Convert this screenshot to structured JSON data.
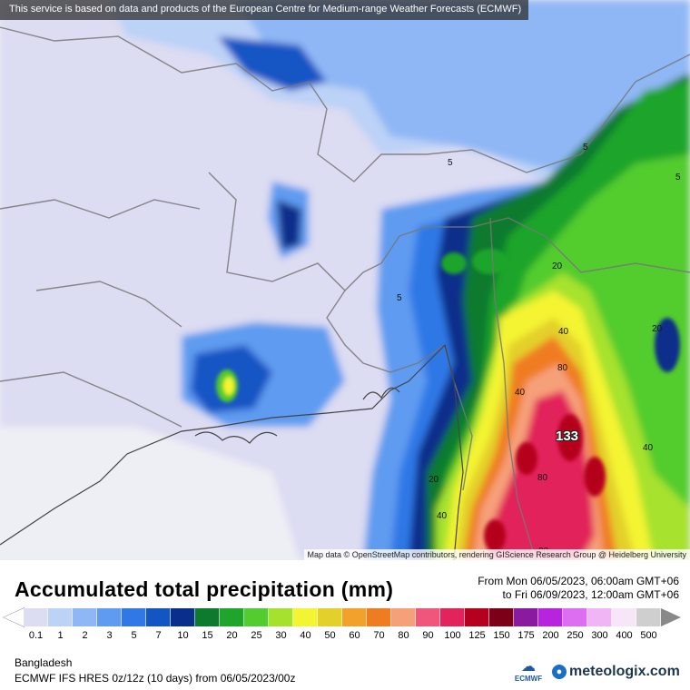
{
  "map": {
    "attribution_top": "This service is based on data and products of the European Centre for Medium-range Weather Forecasts (ECMWF)",
    "attribution_bottom": "Map data © OpenStreetMap contributors, rendering GIScience Research Group @ Heidelberg University",
    "max_value": "133",
    "contour_labels": [
      "5",
      "5",
      "5",
      "5",
      "20",
      "20",
      "40",
      "40",
      "80",
      "40",
      "20",
      "40",
      "80",
      "20"
    ]
  },
  "header": {
    "title": "Accumulated total precipitation (mm)",
    "period_from": "From Mon 06/05/2023, 06:00am GMT+06",
    "period_to": "to Fri 06/09/2023, 12:00am GMT+06"
  },
  "legend": {
    "ticks": [
      "0.1",
      "1",
      "2",
      "3",
      "5",
      "7",
      "10",
      "15",
      "20",
      "25",
      "30",
      "40",
      "50",
      "60",
      "70",
      "80",
      "90",
      "100",
      "125",
      "150",
      "175",
      "200",
      "250",
      "300",
      "400",
      "500"
    ],
    "colors": [
      "#dcdcf2",
      "#bcd2f7",
      "#8fb7f5",
      "#5f9bf0",
      "#2f78e6",
      "#1455c4",
      "#0a2f8a",
      "#0d7a2e",
      "#1fa52b",
      "#52cc2e",
      "#a6e22d",
      "#f4f432",
      "#e3d02b",
      "#f2a12a",
      "#f07c22",
      "#f6a07a",
      "#f0567c",
      "#e2245a",
      "#b5001e",
      "#7d0019",
      "#8a1aa0",
      "#b823e0",
      "#dd6ef2",
      "#f0b5f4",
      "#f7e6f8",
      "#cfcfcf"
    ],
    "arrow_right_color": "#888888"
  },
  "footer": {
    "region": "Bangladesh",
    "model": "ECMWF IFS HRES 0z/12z (10 days)  from  06/05/2023/00z",
    "ecmwf_logo_text": "ECMWF",
    "brand": "meteologix.com"
  }
}
